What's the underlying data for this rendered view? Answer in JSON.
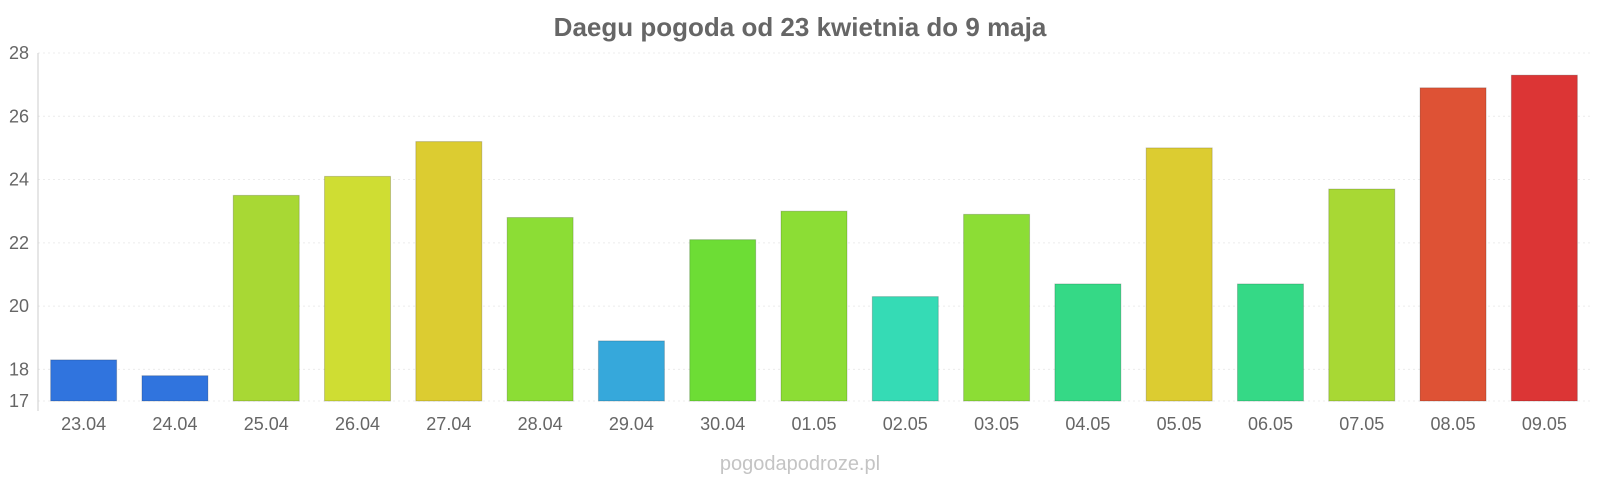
{
  "chart_data": {
    "type": "bar",
    "title": "Daegu pogoda od 23 kwietnia do 9 maja",
    "xlabel": "",
    "ylabel": "",
    "ylim": [
      17,
      28
    ],
    "yticks": [
      17,
      18,
      20,
      22,
      24,
      26,
      28
    ],
    "grid": true,
    "categories": [
      "23.04",
      "24.04",
      "25.04",
      "26.04",
      "27.04",
      "28.04",
      "29.04",
      "30.04",
      "01.05",
      "02.05",
      "03.05",
      "04.05",
      "05.05",
      "06.05",
      "07.05",
      "08.05",
      "09.05"
    ],
    "values": [
      18.3,
      17.8,
      23.5,
      24.1,
      25.2,
      22.8,
      18.9,
      22.1,
      23.0,
      20.3,
      22.9,
      20.7,
      25.0,
      20.7,
      23.7,
      26.9,
      27.3
    ],
    "colors": [
      "#3074de",
      "#3074de",
      "#a8d834",
      "#cfdd33",
      "#dccc31",
      "#8cdd35",
      "#36a8db",
      "#6ddd35",
      "#8cdd35",
      "#35dbb5",
      "#8cdd35",
      "#35d986",
      "#dccc31",
      "#35d986",
      "#a8d834",
      "#de5235",
      "#dc3535"
    ]
  },
  "watermark": "pogodapodroze.pl"
}
